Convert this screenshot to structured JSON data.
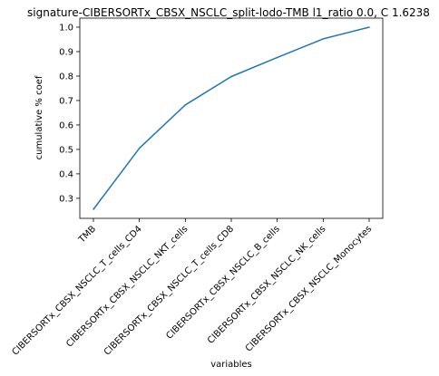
{
  "chart_data": {
    "type": "line",
    "title": "signature-CIBERSORTx_CBSX_NSCLC_split-lodo-TMB l1_ratio 0.0, C 1.6238",
    "xlabel": "variables",
    "ylabel": "cumulative % coef",
    "categories": [
      "TMB",
      "CIBERSORTx_CBSX_NSCLC_T_cells_CD4",
      "CIBERSORTx_CBSX_NSCLC_NKT_cells",
      "CIBERSORTx_CBSX_NSCLC_T_cells_CD8",
      "CIBERSORTx_CBSX_NSCLC_B_cells",
      "CIBERSORTx_CBSX_NSCLC_NK_cells",
      "CIBERSORTx_CBSX_NSCLC_Monocytes"
    ],
    "series": [
      {
        "values": [
          0.255,
          0.505,
          0.682,
          0.798,
          0.876,
          0.952,
          1.0
        ]
      }
    ],
    "yticks": [
      "0.3",
      "0.4",
      "0.5",
      "0.6",
      "0.7",
      "0.8",
      "0.9",
      "1.0"
    ],
    "ylim": [
      0.218,
      1.037
    ],
    "grid": false,
    "colors": {
      "line": "#1f77b4",
      "axes": "#000000"
    }
  }
}
